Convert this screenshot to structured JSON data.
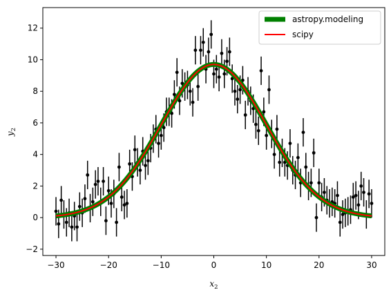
{
  "chart_data": {
    "type": "scatter",
    "xlabel": "x",
    "xlabel_sub": "2",
    "ylabel": "y",
    "ylabel_sub": "2",
    "xlim": [
      -32.5,
      32.5
    ],
    "ylim": [
      -2.4,
      13.3
    ],
    "xticks": [
      -30,
      -20,
      -10,
      0,
      10,
      20,
      30
    ],
    "xtick_labels": [
      "−30",
      "−20",
      "−10",
      "0",
      "10",
      "20",
      "30"
    ],
    "yticks": [
      -2,
      0,
      2,
      4,
      6,
      8,
      10,
      12
    ],
    "ytick_labels": [
      "−2",
      "0",
      "2",
      "4",
      "6",
      "8",
      "10",
      "12"
    ],
    "grid": false,
    "legend_position": "top-right",
    "model": {
      "amplitude": 9.7,
      "mean": 0,
      "stddev": 10
    },
    "series": [
      {
        "name": "astropy.modeling",
        "kind": "line",
        "color": "#008000",
        "x_range": [
          -30,
          30
        ]
      },
      {
        "name": "scipy",
        "kind": "line",
        "color": "#ff0000",
        "x_range": [
          -30,
          30
        ]
      },
      {
        "kind": "errorbar",
        "color": "#000000",
        "yerr": 0.9,
        "x": [
          -30.0,
          -29.5,
          -29.0,
          -28.5,
          -28.0,
          -27.5,
          -27.0,
          -26.5,
          -26.0,
          -25.5,
          -25.0,
          -24.5,
          -24.0,
          -23.5,
          -23.0,
          -22.5,
          -22.0,
          -21.5,
          -21.0,
          -20.5,
          -20.0,
          -19.5,
          -19.0,
          -18.5,
          -18.0,
          -17.5,
          -17.0,
          -16.5,
          -16.0,
          -15.5,
          -15.0,
          -14.5,
          -14.0,
          -13.5,
          -13.0,
          -12.5,
          -12.0,
          -11.5,
          -11.0,
          -10.5,
          -10.0,
          -9.5,
          -9.0,
          -8.5,
          -8.0,
          -7.5,
          -7.0,
          -6.5,
          -6.0,
          -5.5,
          -5.0,
          -4.5,
          -4.0,
          -3.5,
          -3.0,
          -2.5,
          -2.0,
          -1.5,
          -1.0,
          -0.5,
          0.0,
          0.5,
          1.0,
          1.5,
          2.0,
          2.5,
          3.0,
          3.5,
          4.0,
          4.5,
          5.0,
          5.5,
          6.0,
          6.5,
          7.0,
          7.5,
          8.0,
          8.5,
          9.0,
          9.5,
          10.0,
          10.5,
          11.0,
          11.5,
          12.0,
          12.5,
          13.0,
          13.5,
          14.0,
          14.5,
          15.0,
          15.5,
          16.0,
          16.5,
          17.0,
          17.5,
          18.0,
          18.5,
          19.0,
          19.5,
          20.0,
          20.5,
          21.0,
          21.5,
          22.0,
          22.5,
          23.0,
          23.5,
          24.0,
          24.5,
          25.0,
          25.5,
          26.0,
          26.5,
          27.0,
          27.5,
          28.0,
          28.5,
          29.0,
          29.5,
          30.0
        ],
        "y": [
          0.4,
          -0.4,
          1.1,
          0.2,
          -0.3,
          0.3,
          -0.6,
          0.1,
          -0.6,
          0.7,
          0.3,
          1.2,
          2.7,
          0.6,
          1.0,
          2.1,
          2.3,
          1.0,
          2.3,
          -0.2,
          1.7,
          0.9,
          1.5,
          -0.3,
          3.2,
          1.3,
          0.8,
          0.9,
          3.4,
          2.6,
          4.3,
          3.5,
          3.0,
          4.2,
          3.3,
          3.6,
          4.4,
          5.0,
          5.6,
          4.7,
          5.2,
          5.7,
          6.7,
          6.7,
          6.6,
          7.8,
          9.2,
          7.4,
          8.5,
          8.3,
          8.4,
          8.0,
          7.3,
          10.6,
          8.3,
          10.6,
          11.1,
          9.4,
          10.5,
          11.6,
          9.1,
          9.4,
          8.9,
          10.4,
          9.1,
          9.9,
          10.5,
          8.8,
          8.0,
          7.5,
          8.1,
          8.7,
          6.5,
          8.0,
          7.4,
          6.9,
          5.9,
          5.5,
          9.3,
          6.7,
          5.2,
          8.1,
          5.3,
          4.0,
          5.6,
          3.5,
          4.1,
          3.5,
          3.3,
          4.7,
          3.0,
          2.7,
          3.8,
          2.2,
          5.4,
          3.2,
          2.0,
          2.2,
          4.1,
          0.0,
          2.2,
          1.3,
          1.6,
          1.1,
          0.9,
          1.0,
          0.9,
          1.4,
          -0.3,
          0.2,
          0.3,
          0.4,
          0.5,
          1.3,
          1.4,
          0.8,
          2.0,
          1.6,
          0.2,
          1.5,
          0.9
        ]
      }
    ]
  }
}
